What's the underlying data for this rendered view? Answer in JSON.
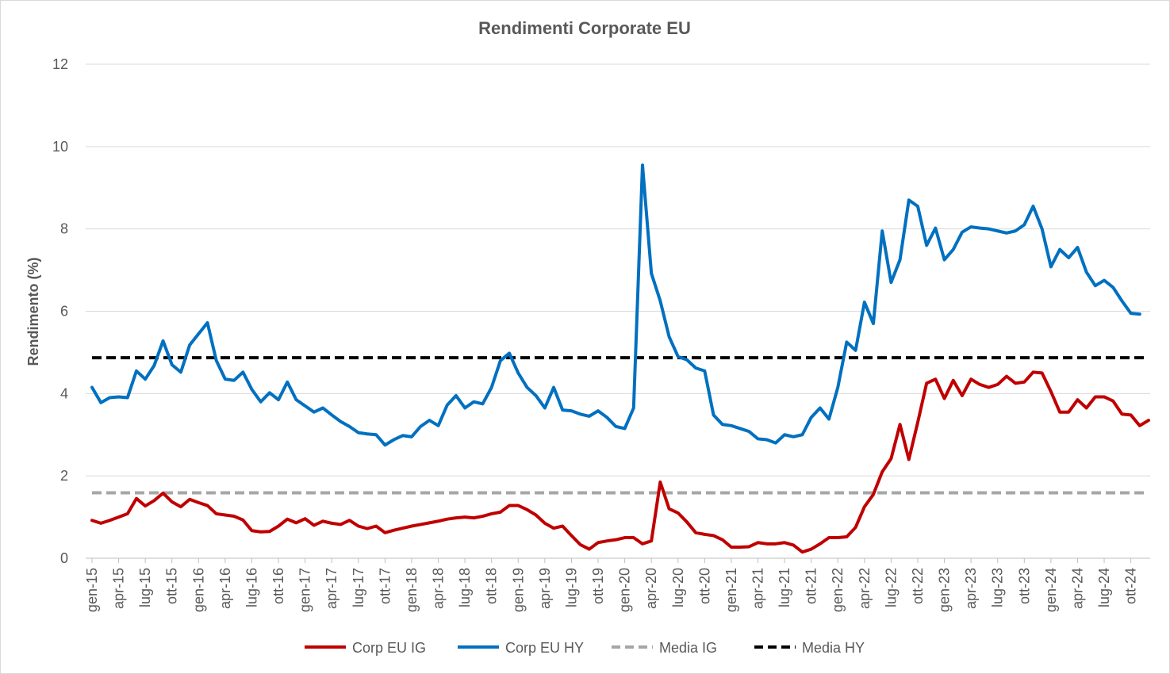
{
  "chart_data": {
    "type": "line",
    "title": "Rendimenti Corporate EU",
    "xlabel": "",
    "ylabel": "Rendimento (%)",
    "ylim": [
      0,
      12
    ],
    "yticks": [
      0,
      2,
      4,
      6,
      8,
      10,
      12
    ],
    "grid": true,
    "legend_position": "bottom",
    "x_start": "gen-15",
    "x_end": "ott-24",
    "tick_labels": [
      "gen-15",
      "apr-15",
      "lug-15",
      "ott-15",
      "gen-16",
      "apr-16",
      "lug-16",
      "ott-16",
      "gen-17",
      "apr-17",
      "lug-17",
      "ott-17",
      "gen-18",
      "apr-18",
      "lug-18",
      "ott-18",
      "gen-19",
      "apr-19",
      "lug-19",
      "ott-19",
      "gen-20",
      "apr-20",
      "lug-20",
      "ott-20",
      "gen-21",
      "apr-21",
      "lug-21",
      "ott-21",
      "gen-22",
      "apr-22",
      "lug-22",
      "ott-22",
      "gen-23",
      "apr-23",
      "lug-23",
      "ott-23",
      "gen-24",
      "apr-24",
      "lug-24",
      "ott-24"
    ],
    "series": [
      {
        "name": "Corp EU IG",
        "color": "#C00000",
        "style": "solid",
        "values": [
          0.92,
          0.85,
          0.92,
          1.0,
          1.08,
          1.45,
          1.27,
          1.4,
          1.58,
          1.37,
          1.25,
          1.43,
          1.35,
          1.28,
          1.08,
          1.05,
          1.02,
          0.93,
          0.67,
          0.64,
          0.65,
          0.78,
          0.95,
          0.86,
          0.96,
          0.8,
          0.9,
          0.85,
          0.82,
          0.92,
          0.78,
          0.72,
          0.78,
          0.62,
          0.68,
          0.73,
          0.78,
          0.82,
          0.86,
          0.9,
          0.95,
          0.98,
          1.0,
          0.98,
          1.02,
          1.08,
          1.12,
          1.28,
          1.28,
          1.18,
          1.05,
          0.85,
          0.73,
          0.78,
          0.55,
          0.33,
          0.22,
          0.38,
          0.42,
          0.45,
          0.5,
          0.5,
          0.35,
          0.42,
          1.85,
          1.2,
          1.1,
          0.88,
          0.62,
          0.58,
          0.55,
          0.45,
          0.27,
          0.27,
          0.28,
          0.38,
          0.35,
          0.35,
          0.38,
          0.32,
          0.15,
          0.22,
          0.35,
          0.5,
          0.5,
          0.52,
          0.75,
          1.25,
          1.55,
          2.1,
          2.42,
          3.25,
          2.4,
          3.3,
          4.25,
          4.35,
          3.88,
          4.32,
          3.95,
          4.35,
          4.22,
          4.15,
          4.22,
          4.42,
          4.25,
          4.28,
          4.52,
          4.5,
          4.05,
          3.55,
          3.55,
          3.85,
          3.65,
          3.92,
          3.92,
          3.82,
          3.5,
          3.48,
          3.22,
          3.35
        ]
      },
      {
        "name": "Corp EU HY",
        "color": "#0070C0",
        "style": "solid",
        "values": [
          4.15,
          3.78,
          3.9,
          3.92,
          3.9,
          4.55,
          4.35,
          4.68,
          5.28,
          4.7,
          4.52,
          5.18,
          5.45,
          5.72,
          4.8,
          4.35,
          4.32,
          4.52,
          4.1,
          3.8,
          4.02,
          3.85,
          4.28,
          3.85,
          3.7,
          3.55,
          3.65,
          3.48,
          3.32,
          3.2,
          3.05,
          3.02,
          3.0,
          2.75,
          2.88,
          2.98,
          2.95,
          3.2,
          3.35,
          3.22,
          3.72,
          3.95,
          3.65,
          3.8,
          3.75,
          4.15,
          4.8,
          4.98,
          4.5,
          4.15,
          3.95,
          3.65,
          4.15,
          3.6,
          3.58,
          3.5,
          3.45,
          3.58,
          3.42,
          3.2,
          3.15,
          3.65,
          9.55,
          6.92,
          6.25,
          5.38,
          4.9,
          4.82,
          4.62,
          4.55,
          3.48,
          3.25,
          3.22,
          3.15,
          3.08,
          2.9,
          2.88,
          2.8,
          3.0,
          2.95,
          3.0,
          3.42,
          3.65,
          3.38,
          4.15,
          5.25,
          5.05,
          6.22,
          5.7,
          7.95,
          6.7,
          7.25,
          8.7,
          8.55,
          7.6,
          8.02,
          7.25,
          7.5,
          7.92,
          8.05,
          8.02,
          8.0,
          7.95,
          7.9,
          7.95,
          8.1,
          8.55,
          8.0,
          7.08,
          7.5,
          7.3,
          7.55,
          6.95,
          6.62,
          6.75,
          6.58,
          6.25,
          5.95,
          5.93
        ]
      },
      {
        "name": "Media IG",
        "color": "#A6A6A6",
        "style": "dashed",
        "values_constant": 1.59
      },
      {
        "name": "Media HY",
        "color": "#000000",
        "style": "dashed",
        "values_constant": 4.87
      }
    ]
  }
}
